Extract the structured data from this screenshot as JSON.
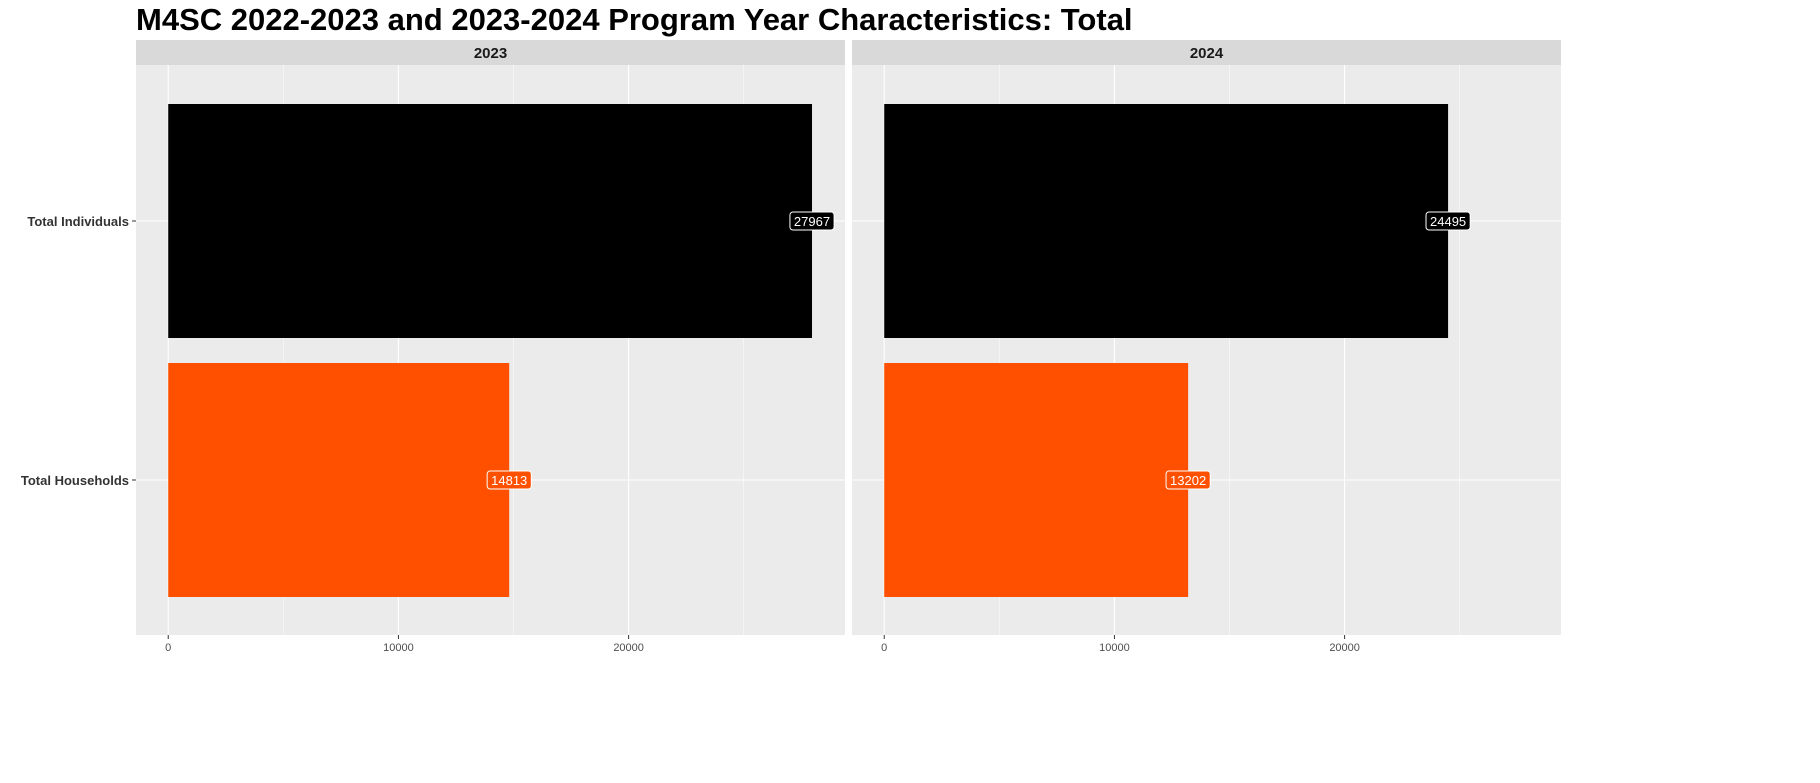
{
  "chart_data": {
    "type": "bar",
    "orientation": "horizontal",
    "title": "M4SC 2022-2023 and 2023-2024 Program Year Characteristics: Total",
    "categories": [
      "Total Individuals",
      "Total Households"
    ],
    "facets": [
      {
        "label": "2023",
        "values": [
          27967,
          14813
        ],
        "value_labels": [
          "27967",
          "14813"
        ]
      },
      {
        "label": "2024",
        "values": [
          24495,
          13202
        ],
        "value_labels": [
          "24495",
          "13202"
        ]
      }
    ],
    "category_colors": [
      "#000000",
      "#ff5000"
    ],
    "xlim": [
      -1400,
      29400
    ],
    "xticks": [
      0,
      10000,
      20000
    ],
    "xtick_labels": [
      "0",
      "10000",
      "20000"
    ],
    "xlabel": "",
    "ylabel": "",
    "grid": true,
    "legend": "none"
  }
}
